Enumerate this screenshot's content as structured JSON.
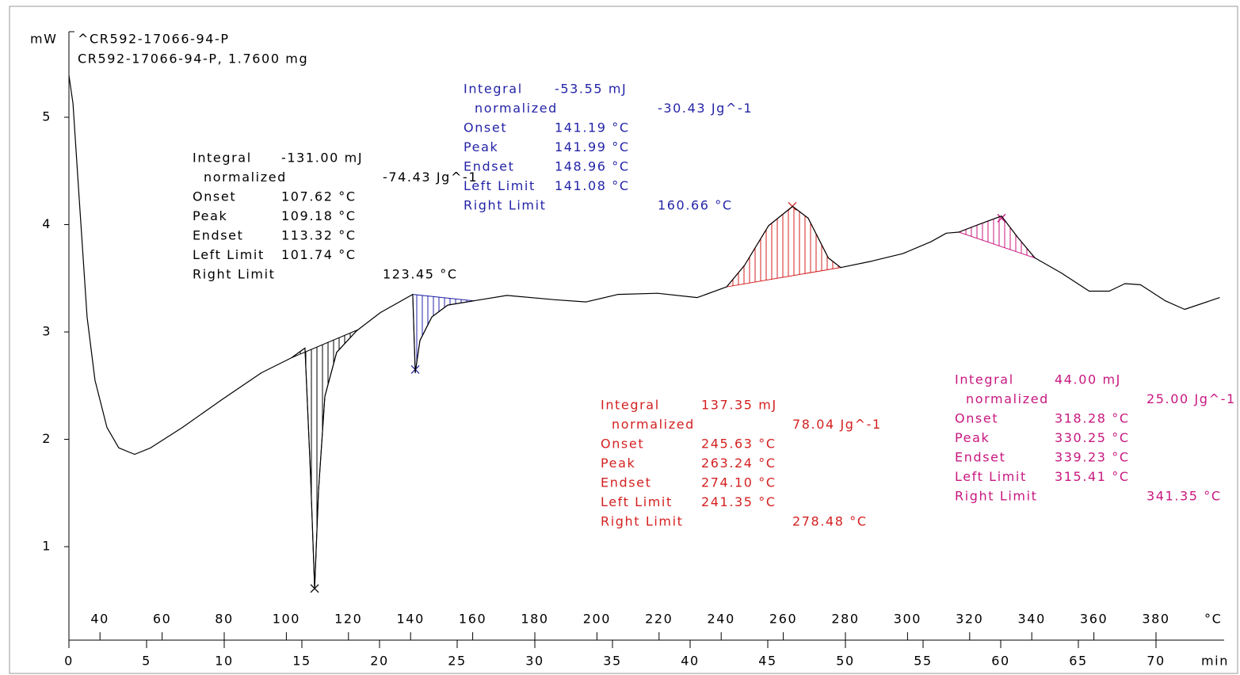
{
  "chart_data": {
    "type": "line",
    "title": "^CR592-17066-94-P",
    "subtitle": "CR592-17066-94-P, 1.7600 mg",
    "y_label": "mW",
    "x_label": "min",
    "x2_label": "°C",
    "x": [
      0,
      0.26,
      0.66,
      1.17,
      1.68,
      2.45,
      3.21,
      4.23,
      5.26,
      7.3,
      9.85,
      12.4,
      14.34,
      15.2,
      15.56,
      15.82,
      16.07,
      16.48,
      17.24,
      18.52,
      20.05,
      22.14,
      22.3,
      22.6,
      23.37,
      24.39,
      26.07,
      28.2,
      31.28,
      33.3,
      35.36,
      37.9,
      40.46,
      42.35,
      43.5,
      45.05,
      46.6,
      47.6,
      48.9,
      49.7,
      51.7,
      53.7,
      55.5,
      56.5,
      57.3,
      58.56,
      60.05,
      61.1,
      62.2,
      63.9,
      65.7,
      66.99,
      68.0,
      69.0,
      70.6,
      71.84,
      74.1
    ],
    "series": [
      {
        "color": "#000000",
        "values": [
          5.39,
          5.13,
          4.25,
          3.14,
          2.55,
          2.11,
          1.92,
          1.86,
          1.92,
          2.11,
          2.37,
          2.62,
          2.76,
          2.85,
          1.66,
          0.61,
          1.52,
          2.4,
          2.81,
          3.01,
          3.18,
          3.35,
          2.62,
          2.92,
          3.14,
          3.25,
          3.29,
          3.34,
          3.3,
          3.28,
          3.35,
          3.36,
          3.32,
          3.42,
          3.62,
          3.99,
          4.17,
          4.06,
          3.69,
          3.6,
          3.66,
          3.73,
          3.84,
          3.92,
          3.93,
          4.0,
          4.08,
          3.88,
          3.69,
          3.55,
          3.38,
          3.38,
          3.45,
          3.44,
          3.29,
          3.21,
          3.32
        ]
      }
    ],
    "xlim": [
      0,
      74.5
    ],
    "ylim": [
      0.15,
      5.8
    ],
    "xticks": [
      0,
      5,
      10,
      15,
      20,
      25,
      30,
      35,
      40,
      45,
      50,
      55,
      60,
      65,
      70
    ],
    "yticks": [
      1,
      2,
      3,
      4,
      5
    ],
    "x2lim": [
      30,
      402.5
    ],
    "x2ticks": [
      40,
      60,
      80,
      100,
      120,
      140,
      160,
      180,
      200,
      220,
      240,
      260,
      280,
      300,
      320,
      340,
      360,
      380
    ],
    "annotations": [
      {
        "color": "#000000",
        "region": [
          14.34,
          18.62
        ],
        "peak": [
          15.82,
          0.61
        ],
        "lines": [
          {
            "label": "Integral",
            "value": "-131.00 mJ"
          },
          {
            "label": "normalized",
            "value": "-74.43 Jg^-1"
          },
          {
            "label": "Onset",
            "value": "107.62 °C"
          },
          {
            "label": "Peak",
            "value": "109.18 °C"
          },
          {
            "label": "Endset",
            "value": "113.32 °C"
          },
          {
            "label": "Left Limit",
            "value": "101.74 °C"
          },
          {
            "label": "Right Limit",
            "value": "123.45 °C"
          }
        ]
      },
      {
        "color": "#2424a8",
        "region": [
          22.14,
          26.07
        ],
        "peak": [
          22.3,
          2.65
        ],
        "lines": [
          {
            "label": "Integral",
            "value": "-53.55 mJ"
          },
          {
            "label": "normalized",
            "value": "-30.43 Jg^-1"
          },
          {
            "label": "Onset",
            "value": "141.19 °C"
          },
          {
            "label": "Peak",
            "value": "141.99 °C"
          },
          {
            "label": "Endset",
            "value": "148.96 °C"
          },
          {
            "label": "Left Limit",
            "value": "141.08 °C"
          },
          {
            "label": "Right Limit",
            "value": "160.66 °C"
          }
        ]
      },
      {
        "color": "#d42020",
        "region": [
          42.35,
          49.74
        ],
        "peak": [
          46.58,
          4.17
        ],
        "lines": [
          {
            "label": "Integral",
            "value": "137.35 mJ"
          },
          {
            "label": "normalized",
            "value": "78.04 Jg^-1"
          },
          {
            "label": "Onset",
            "value": "245.63 °C"
          },
          {
            "label": "Peak",
            "value": "263.24 °C"
          },
          {
            "label": "Endset",
            "value": "274.10 °C"
          },
          {
            "label": "Left Limit",
            "value": "241.35 °C"
          },
          {
            "label": "Right Limit",
            "value": "278.48 °C"
          }
        ]
      },
      {
        "color": "#c8177f",
        "region": [
          57.3,
          62.24
        ],
        "peak": [
          60.05,
          4.06
        ],
        "lines": [
          {
            "label": "Integral",
            "value": "44.00 mJ"
          },
          {
            "label": "normalized",
            "value": "25.00 Jg^-1"
          },
          {
            "label": "Onset",
            "value": "318.28 °C"
          },
          {
            "label": "Peak",
            "value": "330.25 °C"
          },
          {
            "label": "Endset",
            "value": "339.23 °C"
          },
          {
            "label": "Left Limit",
            "value": "315.41 °C"
          },
          {
            "label": "Right Limit",
            "value": "341.35 °C"
          }
        ]
      }
    ]
  }
}
